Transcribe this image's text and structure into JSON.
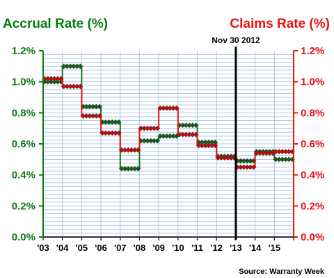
{
  "chart_data": {
    "type": "line",
    "title_left": "Accrual Rate (%)",
    "title_right": "Claims Rate (%)",
    "annotation": "Nov 30 2012",
    "source": "Source: Warranty Week",
    "x_ticks": [
      "'03",
      "'04",
      "'05",
      "'06",
      "'07",
      "'08",
      "'09",
      "'10",
      "'11",
      "'12",
      "'13",
      "'14",
      "'15"
    ],
    "y_ticks_left": [
      "0.0%",
      "0.2%",
      "0.4%",
      "0.6%",
      "0.8%",
      "1.0%",
      "1.2%"
    ],
    "y_ticks_right": [
      "0.0%",
      "0.2%",
      "0.4%",
      "0.6%",
      "0.8%",
      "1.0%",
      "1.2%"
    ],
    "ylim": [
      0,
      1.2
    ],
    "grid": true,
    "annotation_x": 10,
    "series": [
      {
        "name": "Accrual Rate (%)",
        "color": "#0a7a14",
        "values": [
          1.0,
          1.1,
          0.84,
          0.74,
          0.44,
          0.62,
          0.65,
          0.72,
          0.61,
          0.52,
          0.49,
          0.55,
          0.5
        ]
      },
      {
        "name": "Claims Rate (%)",
        "color": "#ee1111",
        "values": [
          1.02,
          0.97,
          0.78,
          0.67,
          0.56,
          0.7,
          0.83,
          0.66,
          0.59,
          0.51,
          0.45,
          0.54,
          0.55
        ]
      }
    ]
  }
}
